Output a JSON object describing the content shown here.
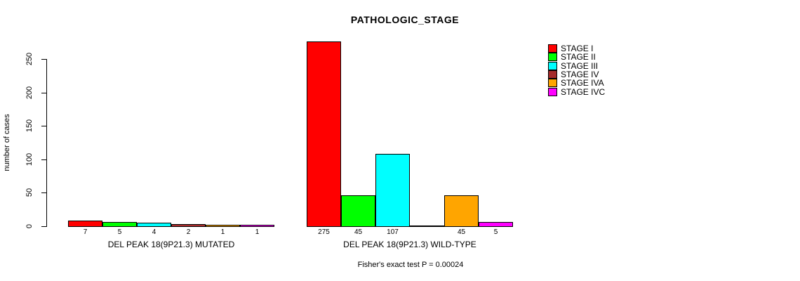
{
  "chart_data": {
    "type": "bar",
    "title": "PATHOLOGIC_STAGE",
    "ylabel": "number of cases",
    "ylim": [
      0,
      250
    ],
    "yticks": [
      0,
      50,
      100,
      150,
      200,
      250
    ],
    "grid": false,
    "legend_position": "right",
    "series_colors": [
      "#FF0000",
      "#00FF00",
      "#00FFFF",
      "#A52A2A",
      "#FFA500",
      "#FF00FF"
    ],
    "legend": {
      "entries": [
        {
          "label": "STAGE I",
          "color": "#FF0000"
        },
        {
          "label": "STAGE II",
          "color": "#00FF00"
        },
        {
          "label": "STAGE III",
          "color": "#00FFFF"
        },
        {
          "label": "STAGE IV",
          "color": "#A52A2A"
        },
        {
          "label": "STAGE IVA",
          "color": "#FFA500"
        },
        {
          "label": "STAGE IVC",
          "color": "#FF00FF"
        }
      ]
    },
    "groups": [
      {
        "label": "DEL PEAK 18(9P21.3) MUTATED",
        "values": [
          7,
          5,
          4,
          2,
          1,
          1
        ],
        "bar_labels": [
          "7",
          "5",
          "4",
          "2",
          "1",
          "1"
        ]
      },
      {
        "label": "DEL PEAK 18(9P21.3) WILD-TYPE",
        "values": [
          275,
          45,
          107,
          0,
          45,
          5
        ],
        "bar_labels": [
          "275",
          "45",
          "107",
          "",
          "45",
          "5"
        ]
      }
    ],
    "footnote": "Fisher's exact test P = 0.00024"
  }
}
